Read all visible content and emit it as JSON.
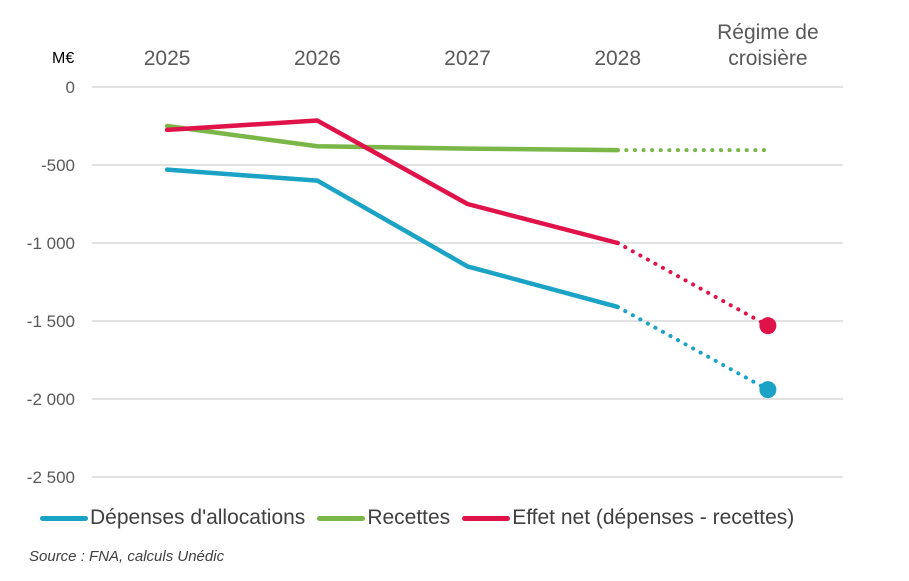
{
  "chart_data": {
    "type": "line",
    "title": "",
    "unit_label": "M€",
    "categories": [
      "2025",
      "2026",
      "2027",
      "2028",
      "Régime de croisière"
    ],
    "category_lines": [
      [
        "2025"
      ],
      [
        "2026"
      ],
      [
        "2027"
      ],
      [
        "2028"
      ],
      [
        "Régime de",
        "croisière"
      ]
    ],
    "xlabel": "",
    "ylabel": "M€",
    "ylim": [
      -2500,
      0
    ],
    "yticks": [
      0,
      -500,
      -1000,
      -1500,
      -2000,
      -2500
    ],
    "ytick_labels": [
      "0",
      "-500",
      "-1 000",
      "-1 500",
      "-2 000",
      "-2 500"
    ],
    "grid": true,
    "x_axis_position": "top",
    "legend_position": "bottom",
    "series": [
      {
        "name": "Dépenses d'allocations",
        "color": "#1AA3C4",
        "values": [
          -530,
          -600,
          -1150,
          -1410,
          -1940
        ],
        "dotted_from_index": 3,
        "end_marker": true
      },
      {
        "name": "Recettes",
        "color": "#7AB648",
        "values": [
          -250,
          -380,
          -395,
          -405,
          -405
        ],
        "dotted_from_index": 3,
        "end_marker": false
      },
      {
        "name": "Effet net (dépenses - recettes)",
        "color": "#E0124A",
        "values": [
          -275,
          -215,
          -750,
          -1000,
          -1530
        ],
        "dotted_from_index": 3,
        "end_marker": true
      }
    ]
  },
  "source": "Source : FNA, calculs Unédic"
}
